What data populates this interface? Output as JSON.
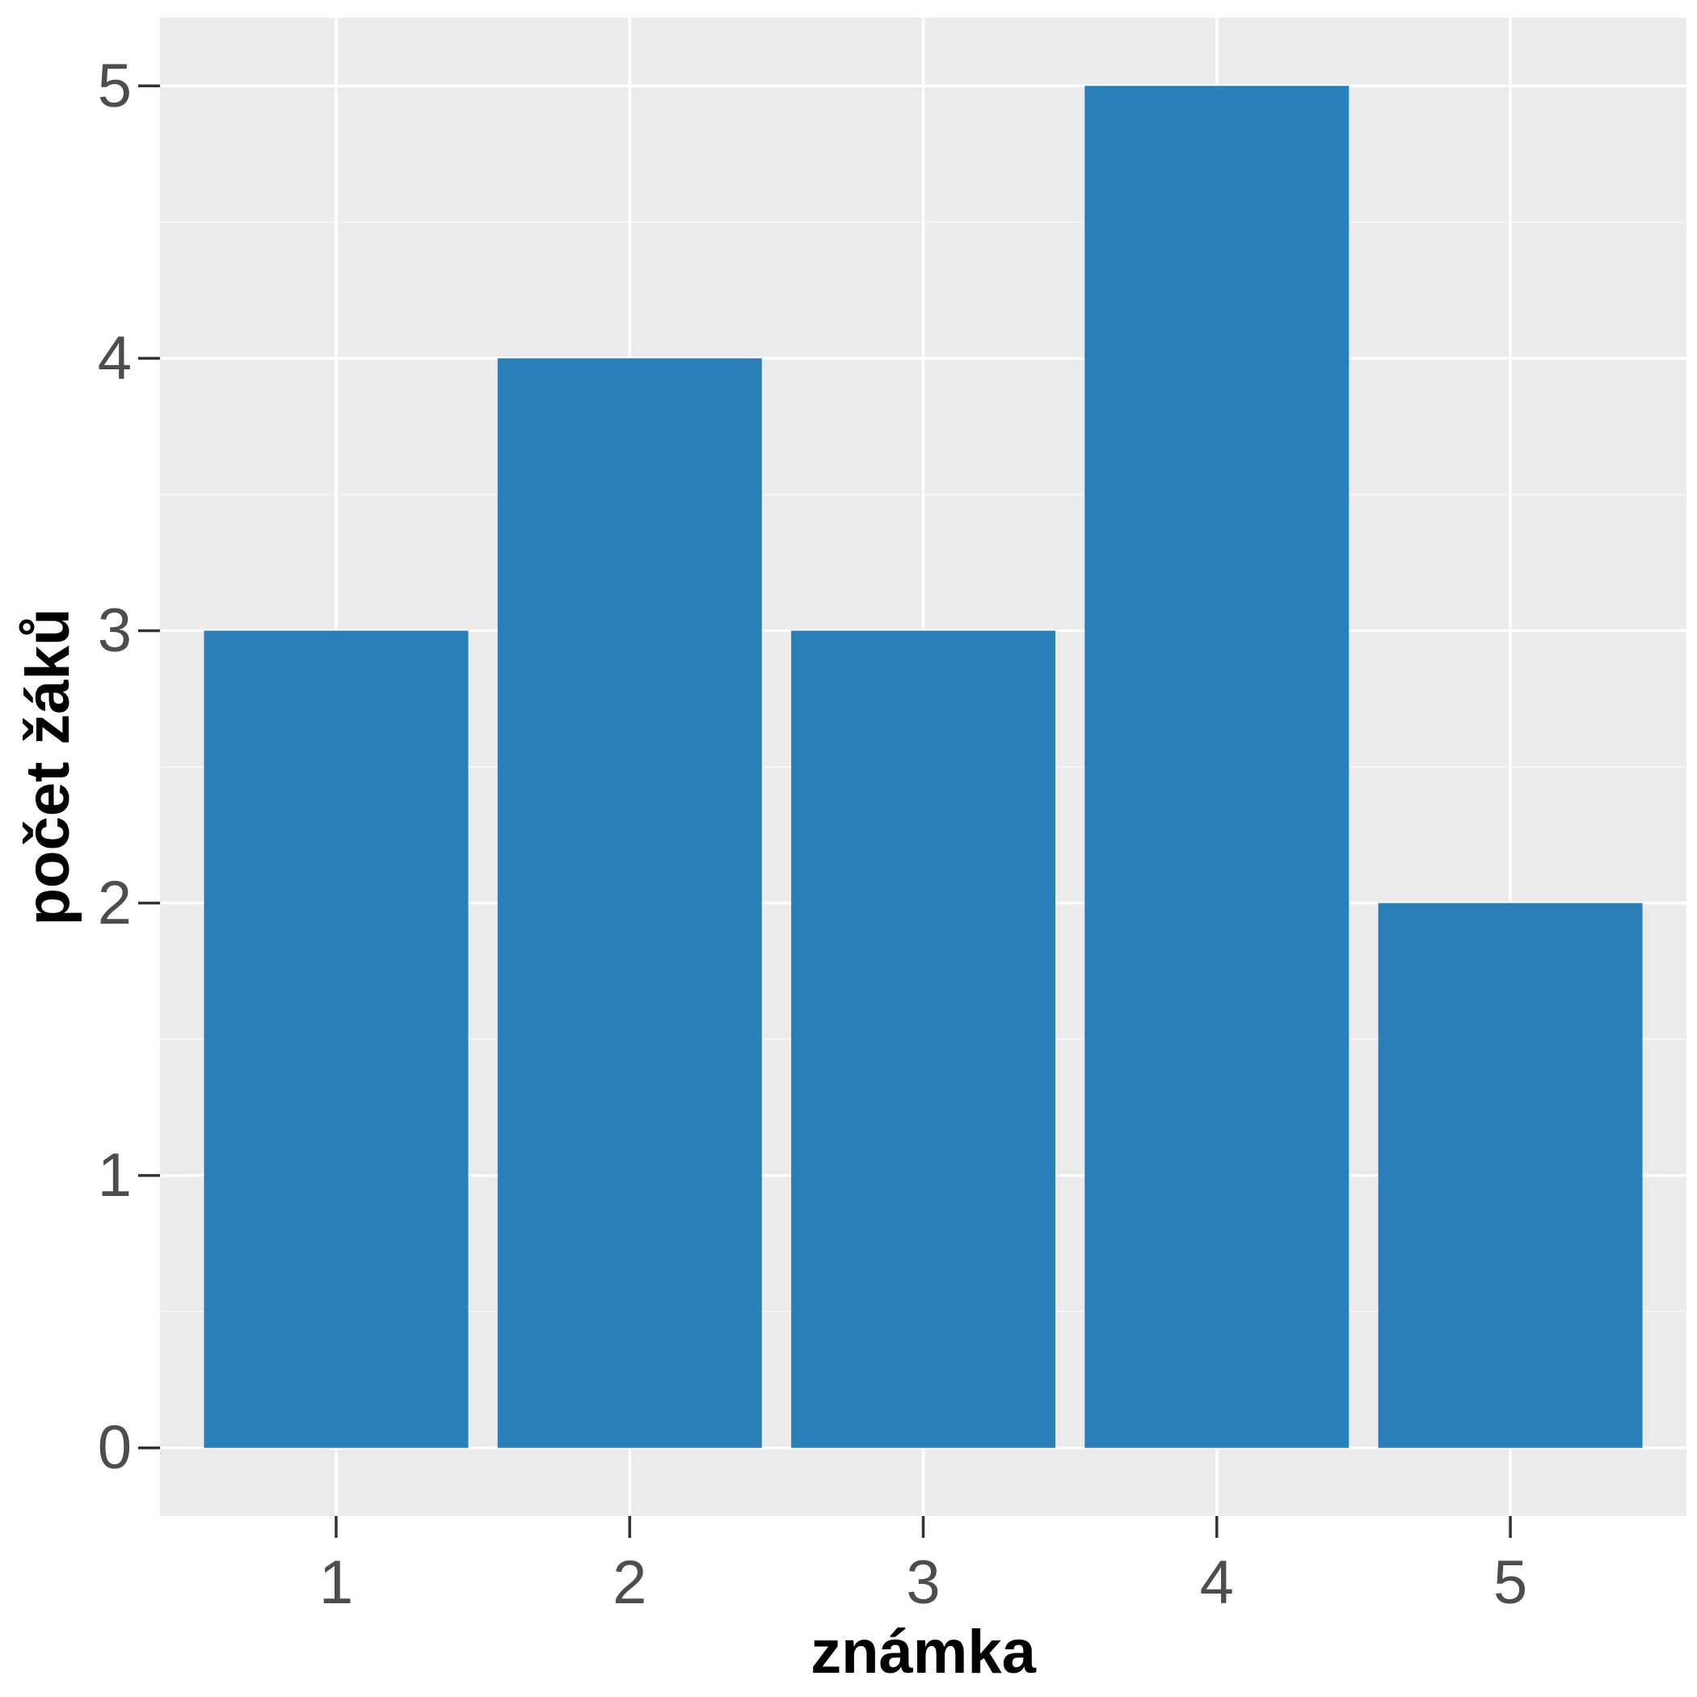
{
  "chart_data": {
    "type": "bar",
    "categories": [
      "1",
      "2",
      "3",
      "4",
      "5"
    ],
    "values": [
      3,
      4,
      3,
      5,
      2
    ],
    "title": "",
    "xlabel": "známka",
    "ylabel": "počet žáků",
    "ylim": [
      -0.25,
      5.25
    ],
    "yticks": [
      "0",
      "1",
      "2",
      "3",
      "4",
      "5"
    ],
    "grid": true,
    "legend": "none"
  },
  "colors": {
    "bar": "#2b7fb8",
    "panel": "#ebebeb",
    "grid_major": "#ffffff",
    "grid_minor": "#f5f5f5",
    "tick": "#333333",
    "tick_label": "#4d4d4d",
    "axis_title": "#000000"
  }
}
